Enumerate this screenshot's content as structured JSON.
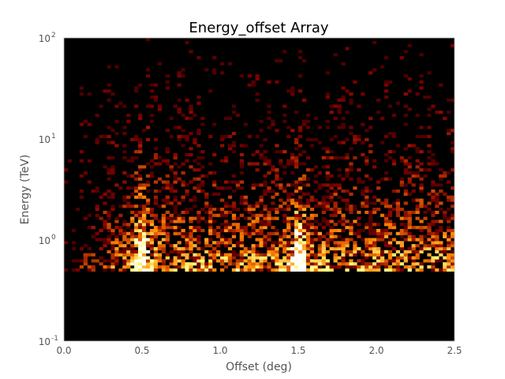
{
  "chart_data": {
    "type": "heatmap",
    "title": "Energy_offset Array",
    "xlabel": "Offset (deg)",
    "ylabel": "Energy (TeV)",
    "xlim": [
      0.0,
      2.5
    ],
    "ylim": [
      0.1,
      100
    ],
    "y_scale": "log",
    "x_ticks": [
      "0.0",
      "0.5",
      "1.0",
      "1.5",
      "2.0",
      "2.5"
    ],
    "x_tick_values": [
      0.0,
      0.5,
      1.0,
      1.5,
      2.0,
      2.5
    ],
    "y_ticks": [
      {
        "base": "10",
        "exp": "-1",
        "value": 0.1
      },
      {
        "base": "10",
        "exp": "0",
        "value": 1
      },
      {
        "base": "10",
        "exp": "1",
        "value": 10
      },
      {
        "base": "10",
        "exp": "2",
        "value": 100
      }
    ],
    "grid": false,
    "colormap": "afmhot",
    "background_color": "#000000",
    "energy_threshold_tev": 0.5,
    "description": {
      "offset_bins": 100,
      "log_energy_bins": 100,
      "hotspot_offsets_deg": [
        0.5,
        1.5
      ],
      "peak_energy_tev": 0.6
    }
  }
}
